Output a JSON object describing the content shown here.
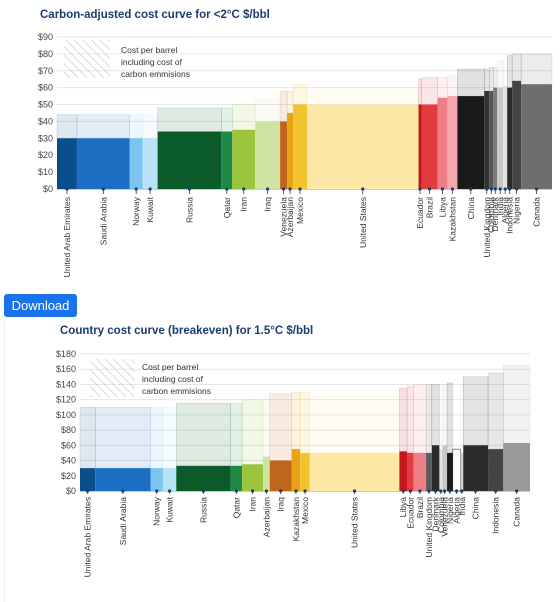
{
  "download": {
    "label": "Download"
  },
  "charts": [
    {
      "title": "Carbon-adjusted cost curve for <2°C $/bbl",
      "legend_text": [
        "Cost per barrel",
        "including cost of",
        "carbon emmisions"
      ]
    },
    {
      "title": "Country cost curve (breakeven) for 1.5°C $/bbl",
      "legend_text": [
        "Cost per barrel",
        "including cost of",
        "carbon emmisions"
      ]
    }
  ],
  "chart_data": [
    {
      "type": "bar",
      "title": "Carbon-adjusted cost curve for <2°C $/bbl",
      "ylim": [
        0,
        90
      ],
      "yticks": [
        0,
        10,
        20,
        30,
        40,
        50,
        60,
        70,
        80,
        90
      ],
      "ytick_labels": [
        "$0",
        "$10",
        "$20",
        "$30",
        "$40",
        "$50",
        "$60",
        "$70",
        "$80",
        "$90"
      ],
      "grid": true,
      "categories": [
        "United Arab Emirates",
        "Saudi Arabia",
        "Norway",
        "Kuwait",
        "Russia",
        "Qatar",
        "Iran",
        "Iraq",
        "Venezuela",
        "Azerbaijan",
        "Mexico",
        "United States",
        "Ecuador",
        "Brazil",
        "Libya",
        "Kazakhstan",
        "China",
        "United Kingdom",
        "Colombia",
        "Denmark",
        "India",
        "Algeria",
        "Indonesia",
        "Nigeria",
        "Canada"
      ],
      "series": [
        {
          "values": [
            30,
            30,
            30,
            30,
            34,
            34,
            35,
            40,
            40,
            45,
            50,
            50,
            50,
            50,
            54,
            55,
            55,
            58,
            58,
            60,
            60,
            61,
            60,
            64,
            62
          ]
        },
        {
          "values": [
            44,
            44,
            44,
            44,
            48,
            48,
            50,
            53,
            58,
            58,
            62,
            58,
            65,
            66,
            66,
            67,
            71,
            71,
            72,
            72,
            76,
            77,
            79,
            80,
            80
          ]
        }
      ],
      "colors": [
        "#0a4f8c",
        "#1b6ec2",
        "#7cc4ef",
        "#b9e1f7",
        "#0a5a2a",
        "#1f8a45",
        "#9bc53d",
        "#cfe3a2",
        "#c0661c",
        "#e8a318",
        "#f4c430",
        "#fde9a6",
        "#c4161c",
        "#e23c40",
        "#ef7f86",
        "#f4a9ae",
        "#1a1a1a",
        "#333333",
        "#555555",
        "#7a7a7a",
        "#c8c8c8",
        "#e3e3e3",
        "#2a2a2a",
        "#444444",
        "#6e6e6e"
      ]
    },
    {
      "type": "bar",
      "title": "Country cost curve (breakeven) for 1.5°C $/bbl",
      "ylim": [
        0,
        180
      ],
      "yticks": [
        0,
        20,
        40,
        60,
        80,
        100,
        120,
        140,
        160,
        180
      ],
      "ytick_labels": [
        "$0",
        "$20",
        "$40",
        "$60",
        "$80",
        "$100",
        "$120",
        "$140",
        "$160",
        "$180"
      ],
      "grid": true,
      "categories": [
        "United Arab Emirates",
        "Saudi Arabia",
        "Norway",
        "Kuwait",
        "Russia",
        "Qatar",
        "Iran",
        "Azerbaijan",
        "Iraq",
        "Kazakhstan",
        "Mexico",
        "United States",
        "Libya",
        "Ecuador",
        "Brazil",
        "United Kingdom",
        "Denmark",
        "Colombia",
        "Venezuela",
        "Nigeria",
        "Algeria",
        "India",
        "China",
        "Indonesia",
        "Canada"
      ],
      "series": [
        {
          "values": [
            30,
            30,
            30,
            30,
            33,
            33,
            35,
            45,
            40,
            55,
            50,
            50,
            52,
            50,
            50,
            50,
            60,
            55,
            60,
            50,
            55,
            50,
            60,
            55,
            63
          ]
        },
        {
          "values": [
            110,
            110,
            110,
            110,
            115,
            115,
            120,
            125,
            128,
            130,
            130,
            125,
            135,
            138,
            140,
            140,
            140,
            140,
            140,
            142,
            140,
            140,
            150,
            155,
            165
          ]
        }
      ],
      "colors": [
        "#0a4f8c",
        "#1b6ec2",
        "#7cc4ef",
        "#b9e1f7",
        "#0a5a2a",
        "#1f8a45",
        "#9bc53d",
        "#cfe3a2",
        "#c0661c",
        "#e8a318",
        "#f4c430",
        "#fde9a6",
        "#c4161c",
        "#e23c40",
        "#ef7f86",
        "#5a5a5a",
        "#2a2a2a",
        "#e3e3e3",
        "#c8c8c8",
        "#1a1a1a",
        "#ffffff",
        "#d0d0d0",
        "#2a2a2a",
        "#444444",
        "#9a9a9a"
      ]
    }
  ]
}
